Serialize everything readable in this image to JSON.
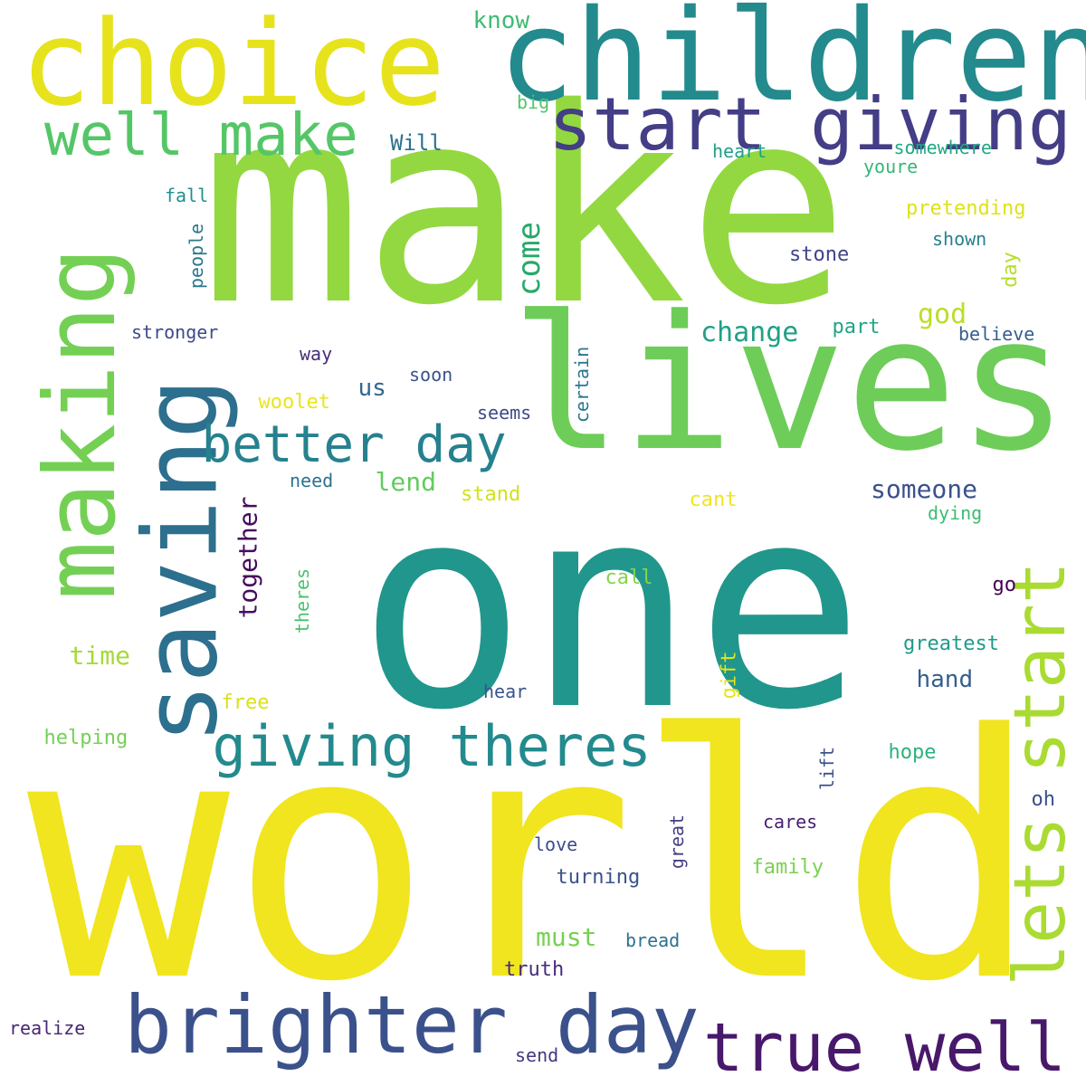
{
  "words": [
    {
      "text": "world",
      "color": "#f0e51f",
      "rotated": false
    },
    {
      "text": "one",
      "color": "#21968c",
      "rotated": false
    },
    {
      "text": "make",
      "color": "#93d840",
      "rotated": false
    },
    {
      "text": "lives",
      "color": "#6dcd58",
      "rotated": false
    },
    {
      "text": "children",
      "color": "#238a8d",
      "rotated": false
    },
    {
      "text": "choice",
      "color": "#e6e31d",
      "rotated": false
    },
    {
      "text": "making",
      "color": "#74d054",
      "rotated": true
    },
    {
      "text": "saving",
      "color": "#2d6f8e",
      "rotated": true
    },
    {
      "text": "brighter day",
      "color": "#3b518b",
      "rotated": false
    },
    {
      "text": "start giving",
      "color": "#433e85",
      "rotated": false
    },
    {
      "text": "lets start",
      "color": "#aadb32",
      "rotated": true
    },
    {
      "text": "true well",
      "color": "#48186a",
      "rotated": false
    },
    {
      "text": "giving theres",
      "color": "#238a8d",
      "rotated": false
    },
    {
      "text": "well make",
      "color": "#55c667",
      "rotated": false
    },
    {
      "text": "better day",
      "color": "#26818e",
      "rotated": false
    },
    {
      "text": "come",
      "color": "#26a969",
      "rotated": true
    },
    {
      "text": "change",
      "color": "#1fa086",
      "rotated": false
    },
    {
      "text": "someone",
      "color": "#3b518b",
      "rotated": false
    },
    {
      "text": "together",
      "color": "#460b5e",
      "rotated": true
    },
    {
      "text": "hand",
      "color": "#355f8d",
      "rotated": false
    },
    {
      "text": "lend",
      "color": "#62cb5f",
      "rotated": false
    },
    {
      "text": "god",
      "color": "#bade28",
      "rotated": false
    },
    {
      "text": "must",
      "color": "#77d152",
      "rotated": false
    },
    {
      "text": "time",
      "color": "#a5db36",
      "rotated": false
    },
    {
      "text": "us",
      "color": "#31688e",
      "rotated": false
    },
    {
      "text": "know",
      "color": "#3dbc74",
      "rotated": false
    },
    {
      "text": "Will",
      "color": "#2c738e",
      "rotated": false
    },
    {
      "text": "big",
      "color": "#52c569",
      "rotated": false
    },
    {
      "text": "heart",
      "color": "#1fa088",
      "rotated": false
    },
    {
      "text": "somewhere",
      "color": "#22a784",
      "rotated": false
    },
    {
      "text": "youre",
      "color": "#35b779",
      "rotated": false
    },
    {
      "text": "pretending",
      "color": "#dde318",
      "rotated": false
    },
    {
      "text": "fall",
      "color": "#218f8d",
      "rotated": false
    },
    {
      "text": "people",
      "color": "#2a788e",
      "rotated": true
    },
    {
      "text": "shown",
      "color": "#27808e",
      "rotated": false
    },
    {
      "text": "stone",
      "color": "#414487",
      "rotated": false
    },
    {
      "text": "day",
      "color": "#b5de2b",
      "rotated": true
    },
    {
      "text": "part",
      "color": "#20a486",
      "rotated": false
    },
    {
      "text": "believe",
      "color": "#355e8d",
      "rotated": false
    },
    {
      "text": "stronger",
      "color": "#3e4a89",
      "rotated": false
    },
    {
      "text": "way",
      "color": "#472d7b",
      "rotated": false
    },
    {
      "text": "soon",
      "color": "#3a538b",
      "rotated": false
    },
    {
      "text": "woolet",
      "color": "#eae51a",
      "rotated": false
    },
    {
      "text": "seems",
      "color": "#3f4889",
      "rotated": false
    },
    {
      "text": "certain",
      "color": "#2a788e",
      "rotated": true
    },
    {
      "text": "need",
      "color": "#2c728e",
      "rotated": false
    },
    {
      "text": "stand",
      "color": "#d2e21b",
      "rotated": false
    },
    {
      "text": "cant",
      "color": "#f0e51f",
      "rotated": false
    },
    {
      "text": "dying",
      "color": "#3dbc74",
      "rotated": false
    },
    {
      "text": "theres",
      "color": "#4ac16d",
      "rotated": true
    },
    {
      "text": "call",
      "color": "#84d44b",
      "rotated": false
    },
    {
      "text": "go",
      "color": "#440154",
      "rotated": false
    },
    {
      "text": "greatest",
      "color": "#1f9a8a",
      "rotated": false
    },
    {
      "text": "gift",
      "color": "#e5e419",
      "rotated": true
    },
    {
      "text": "hear",
      "color": "#39558c",
      "rotated": false
    },
    {
      "text": "free",
      "color": "#d8e219",
      "rotated": false
    },
    {
      "text": "helping",
      "color": "#75d054",
      "rotated": false
    },
    {
      "text": "lift",
      "color": "#3b528b",
      "rotated": true
    },
    {
      "text": "hope",
      "color": "#2db27d",
      "rotated": false
    },
    {
      "text": "oh",
      "color": "#3b518b",
      "rotated": false
    },
    {
      "text": "cares",
      "color": "#481f70",
      "rotated": false
    },
    {
      "text": "great",
      "color": "#433e85",
      "rotated": true
    },
    {
      "text": "love",
      "color": "#3e4c8a",
      "rotated": false
    },
    {
      "text": "family",
      "color": "#7ad151",
      "rotated": false
    },
    {
      "text": "turning",
      "color": "#3b528b",
      "rotated": false
    },
    {
      "text": "bread",
      "color": "#2c728e",
      "rotated": false
    },
    {
      "text": "truth",
      "color": "#472c7a",
      "rotated": false
    },
    {
      "text": "realize",
      "color": "#482576",
      "rotated": false
    },
    {
      "text": "send",
      "color": "#453781",
      "rotated": false
    }
  ]
}
